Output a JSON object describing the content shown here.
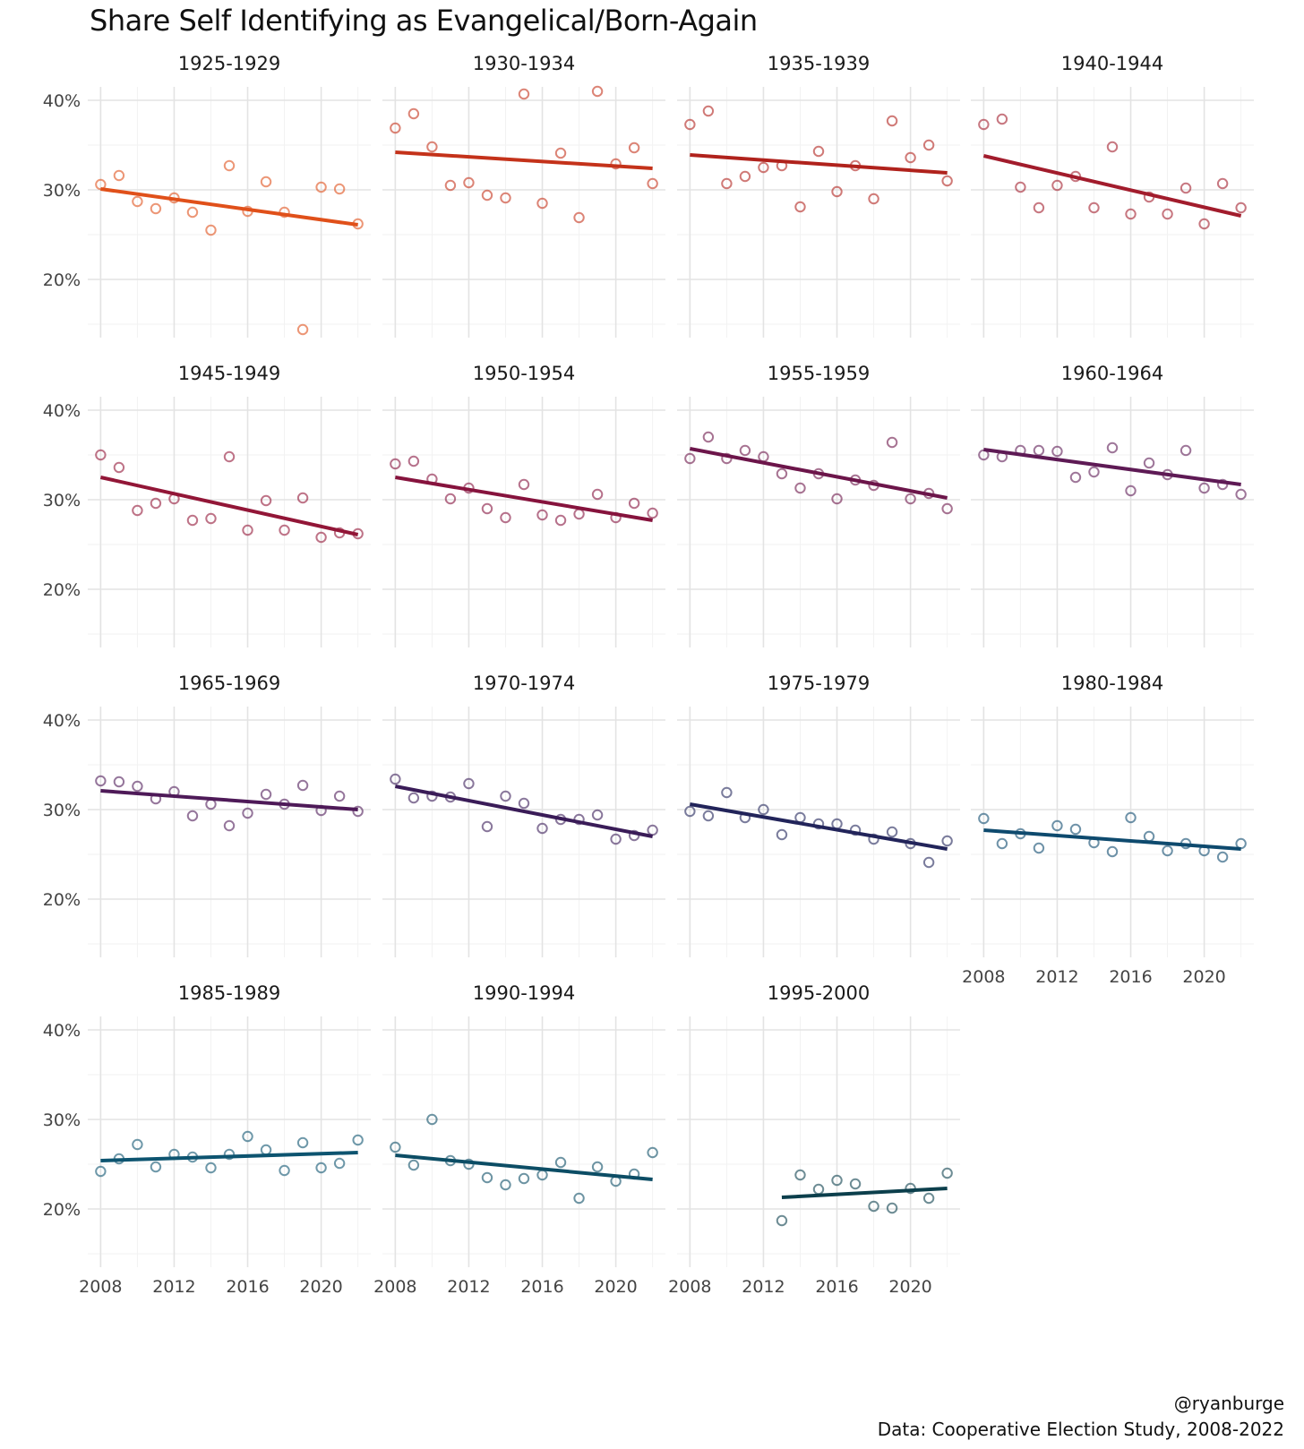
{
  "chart_data": {
    "type": "scatter",
    "title": "Share Self Identifying as Evangelical/Born-Again",
    "caption": [
      "@ryanburge",
      "Data: Cooperative Election Study, 2008-2022"
    ],
    "xlim": [
      2007.3,
      2022.7
    ],
    "ylim": [
      0.135,
      0.415
    ],
    "x_ticks": [
      2008,
      2012,
      2016,
      2020
    ],
    "y_ticks": [
      0.2,
      0.3,
      0.4
    ],
    "y_tick_labels": [
      "20%",
      "30%",
      "40%"
    ],
    "grid": true,
    "years": [
      2008,
      2009,
      2010,
      2011,
      2012,
      2013,
      2014,
      2015,
      2016,
      2017,
      2018,
      2019,
      2020,
      2021,
      2022
    ],
    "facets": [
      {
        "label": "1925-1929",
        "color": "#e0501a",
        "values": [
          0.306,
          0.316,
          0.287,
          0.279,
          0.291,
          0.275,
          0.255,
          0.327,
          0.276,
          0.309,
          0.275,
          0.144,
          0.303,
          0.301,
          0.262
        ],
        "fit": [
          0.301,
          0.261
        ]
      },
      {
        "label": "1930-1934",
        "color": "#c4321a",
        "values": [
          0.369,
          0.385,
          0.348,
          0.305,
          0.308,
          0.294,
          0.291,
          0.407,
          0.285,
          0.341,
          0.269,
          0.41,
          0.329,
          0.347,
          0.307
        ],
        "fit": [
          0.342,
          0.324
        ]
      },
      {
        "label": "1935-1939",
        "color": "#b0221c",
        "values": [
          0.373,
          0.388,
          0.307,
          0.315,
          0.325,
          0.327,
          0.281,
          0.343,
          0.298,
          0.327,
          0.29,
          0.377,
          0.336,
          0.35,
          0.31
        ],
        "fit": [
          0.339,
          0.319
        ]
      },
      {
        "label": "1940-1944",
        "color": "#a21c2c",
        "values": [
          0.373,
          0.379,
          0.303,
          0.28,
          0.305,
          0.315,
          0.28,
          0.348,
          0.273,
          0.292,
          0.273,
          0.302,
          0.262,
          0.307,
          0.28
        ],
        "fit": [
          0.338,
          0.271
        ]
      },
      {
        "label": "1945-1949",
        "color": "#921637",
        "values": [
          0.35,
          0.336,
          0.288,
          0.296,
          0.301,
          0.277,
          0.279,
          0.348,
          0.266,
          0.299,
          0.266,
          0.302,
          0.258,
          0.263,
          0.262
        ],
        "fit": [
          0.325,
          0.261
        ]
      },
      {
        "label": "1950-1954",
        "color": "#86133d",
        "values": [
          0.34,
          0.343,
          0.323,
          0.301,
          0.313,
          0.29,
          0.28,
          0.317,
          0.283,
          0.277,
          0.284,
          0.306,
          0.28,
          0.296,
          0.285
        ],
        "fit": [
          0.325,
          0.277
        ]
      },
      {
        "label": "1955-1959",
        "color": "#6c154a",
        "values": [
          0.346,
          0.37,
          0.346,
          0.355,
          0.348,
          0.329,
          0.313,
          0.329,
          0.301,
          0.322,
          0.316,
          0.364,
          0.301,
          0.307,
          0.29
        ],
        "fit": [
          0.357,
          0.302
        ]
      },
      {
        "label": "1960-1964",
        "color": "#5e1a55",
        "values": [
          0.35,
          0.348,
          0.355,
          0.355,
          0.354,
          0.325,
          0.331,
          0.358,
          0.31,
          0.341,
          0.328,
          0.355,
          0.313,
          0.317,
          0.306
        ],
        "fit": [
          0.356,
          0.317
        ]
      },
      {
        "label": "1965-1969",
        "color": "#4e1a58",
        "values": [
          0.332,
          0.331,
          0.326,
          0.312,
          0.32,
          0.293,
          0.306,
          0.282,
          0.296,
          0.317,
          0.306,
          0.327,
          0.299,
          0.315,
          0.298
        ],
        "fit": [
          0.321,
          0.3
        ]
      },
      {
        "label": "1970-1974",
        "color": "#3a1c58",
        "values": [
          0.334,
          0.313,
          0.315,
          0.314,
          0.329,
          0.281,
          0.315,
          0.307,
          0.279,
          0.289,
          0.289,
          0.294,
          0.267,
          0.271,
          0.277
        ],
        "fit": [
          0.326,
          0.27
        ]
      },
      {
        "label": "1975-1979",
        "color": "#22245a",
        "values": [
          0.298,
          0.293,
          0.319,
          0.291,
          0.3,
          0.272,
          0.291,
          0.284,
          0.284,
          0.277,
          0.267,
          0.275,
          0.262,
          0.241,
          0.265
        ],
        "fit": [
          0.306,
          0.256
        ]
      },
      {
        "label": "1980-1984",
        "color": "#0e4a6e",
        "values": [
          0.29,
          0.262,
          0.273,
          0.257,
          0.282,
          0.278,
          0.263,
          0.253,
          0.291,
          0.27,
          0.254,
          0.262,
          0.254,
          0.247,
          0.262
        ],
        "fit": [
          0.277,
          0.256
        ]
      },
      {
        "label": "1985-1989",
        "color": "#0d5470",
        "values": [
          0.242,
          0.256,
          0.272,
          0.247,
          0.261,
          0.258,
          0.246,
          0.261,
          0.281,
          0.266,
          0.243,
          0.274,
          0.246,
          0.251,
          0.277
        ],
        "fit": [
          0.254,
          0.263
        ]
      },
      {
        "label": "1990-1994",
        "color": "#0c4d65",
        "values": [
          0.269,
          0.249,
          0.3,
          0.254,
          0.25,
          0.235,
          0.227,
          0.234,
          0.238,
          0.252,
          0.212,
          0.247,
          0.231,
          0.239,
          0.263
        ],
        "fit": [
          0.26,
          0.233
        ]
      },
      {
        "label": "1995-2000",
        "color": "#0c3f4c",
        "values": [
          null,
          null,
          null,
          null,
          null,
          0.187,
          0.238,
          0.222,
          0.232,
          0.228,
          0.203,
          0.201,
          0.223,
          0.212,
          0.24
        ],
        "fit": [
          0.213,
          0.223
        ],
        "fit_start": 2013
      }
    ]
  }
}
